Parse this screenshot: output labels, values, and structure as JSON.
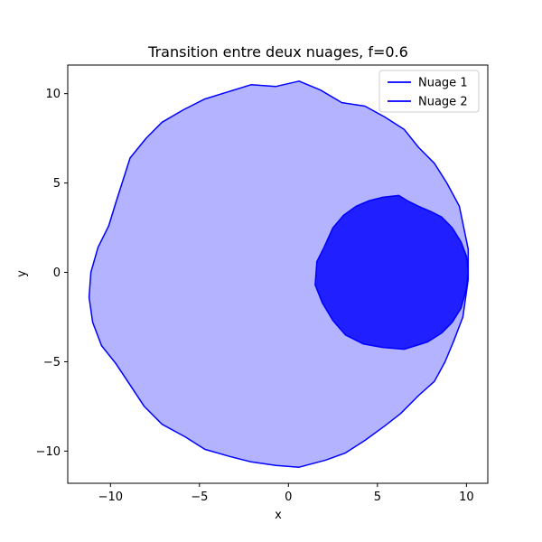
{
  "chart_data": {
    "type": "area",
    "title": "Transition entre deux nuages, f=0.6",
    "xlabel": "x",
    "ylabel": "y",
    "xlim": [
      -12.4,
      11.2
    ],
    "ylim": [
      -11.8,
      11.6
    ],
    "xticks": [
      -10,
      -5,
      0,
      5,
      10
    ],
    "yticks": [
      -10,
      -5,
      0,
      5,
      10
    ],
    "grid": false,
    "legend_position": "upper right",
    "colors": {
      "series1_line": "#0000ff",
      "series1_fill": "#b3b3ff",
      "series2_line": "#0000ff",
      "series2_fill": "#1f1fff"
    },
    "series": [
      {
        "name": "Nuage 1",
        "points": [
          [
            0.6,
            10.7
          ],
          [
            1.8,
            10.2
          ],
          [
            3.0,
            9.5
          ],
          [
            4.3,
            9.3
          ],
          [
            5.4,
            8.7
          ],
          [
            6.5,
            8.0
          ],
          [
            7.3,
            7.0
          ],
          [
            8.2,
            6.1
          ],
          [
            8.9,
            5.0
          ],
          [
            9.6,
            3.7
          ],
          [
            10.1,
            1.3
          ],
          [
            10.1,
            -0.4
          ],
          [
            9.8,
            -2.5
          ],
          [
            9.3,
            -3.8
          ],
          [
            8.8,
            -5.0
          ],
          [
            8.2,
            -6.1
          ],
          [
            7.3,
            -6.9
          ],
          [
            6.3,
            -7.9
          ],
          [
            5.4,
            -8.6
          ],
          [
            4.3,
            -9.4
          ],
          [
            3.2,
            -10.1
          ],
          [
            2.1,
            -10.5
          ],
          [
            0.6,
            -10.9
          ],
          [
            -0.7,
            -10.8
          ],
          [
            -2.1,
            -10.6
          ],
          [
            -3.3,
            -10.3
          ],
          [
            -4.7,
            -9.9
          ],
          [
            -5.8,
            -9.2
          ],
          [
            -7.1,
            -8.5
          ],
          [
            -8.1,
            -7.5
          ],
          [
            -8.9,
            -6.3
          ],
          [
            -9.7,
            -5.1
          ],
          [
            -10.5,
            -4.1
          ],
          [
            -11.0,
            -2.8
          ],
          [
            -11.2,
            -1.4
          ],
          [
            -11.1,
            0.0
          ],
          [
            -10.7,
            1.4
          ],
          [
            -10.1,
            2.6
          ],
          [
            -9.7,
            3.9
          ],
          [
            -8.9,
            6.4
          ],
          [
            -8.0,
            7.5
          ],
          [
            -7.1,
            8.4
          ],
          [
            -5.9,
            9.1
          ],
          [
            -4.7,
            9.7
          ],
          [
            -3.4,
            10.1
          ],
          [
            -2.1,
            10.5
          ],
          [
            -0.7,
            10.4
          ]
        ]
      },
      {
        "name": "Nuage 2",
        "points": [
          [
            5.3,
            4.2
          ],
          [
            6.2,
            4.3
          ],
          [
            6.7,
            4.0
          ],
          [
            7.3,
            3.7
          ],
          [
            8.0,
            3.4
          ],
          [
            8.6,
            3.1
          ],
          [
            9.2,
            2.5
          ],
          [
            9.7,
            1.7
          ],
          [
            10.0,
            0.9
          ],
          [
            10.1,
            0.0
          ],
          [
            10.0,
            -0.9
          ],
          [
            9.7,
            -2.0
          ],
          [
            9.2,
            -2.8
          ],
          [
            8.6,
            -3.4
          ],
          [
            7.8,
            -3.9
          ],
          [
            6.5,
            -4.3
          ],
          [
            5.3,
            -4.2
          ],
          [
            4.2,
            -4.0
          ],
          [
            3.2,
            -3.5
          ],
          [
            2.5,
            -2.7
          ],
          [
            1.9,
            -1.7
          ],
          [
            1.5,
            -0.7
          ],
          [
            1.6,
            0.6
          ],
          [
            2.0,
            1.4
          ],
          [
            2.5,
            2.5
          ],
          [
            3.1,
            3.2
          ],
          [
            3.8,
            3.7
          ],
          [
            4.5,
            4.0
          ]
        ]
      }
    ]
  }
}
